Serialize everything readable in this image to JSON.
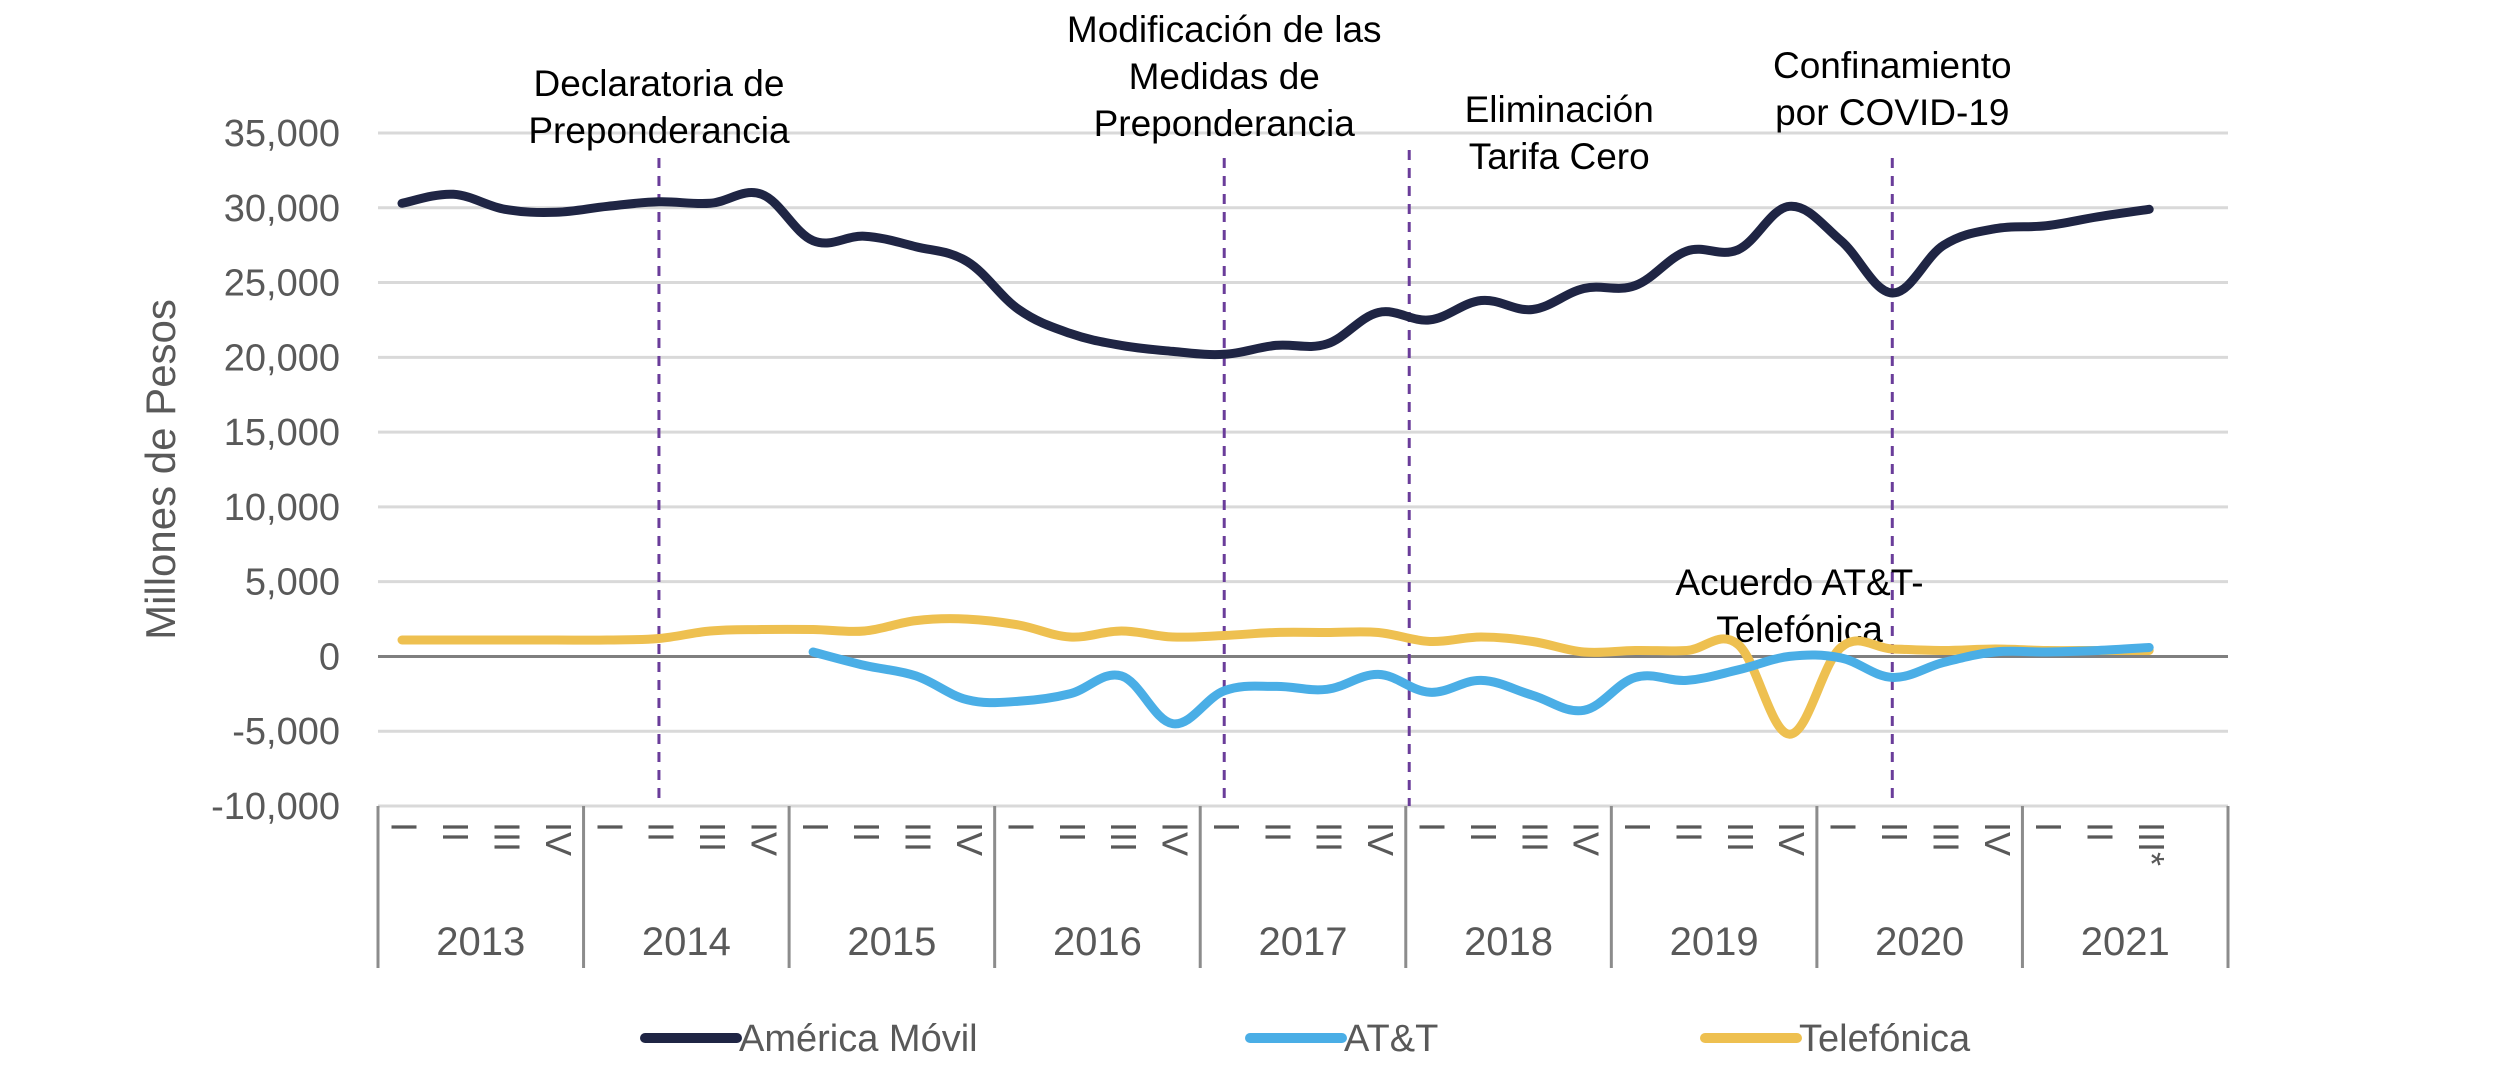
{
  "chart_data": {
    "type": "line",
    "ylabel": "Millones de Pesos",
    "ylim": [
      -10000,
      35000
    ],
    "yticks": [
      -10000,
      -5000,
      0,
      5000,
      10000,
      15000,
      20000,
      25000,
      30000,
      35000
    ],
    "ytick_labels": [
      "-10,000",
      "-5,000",
      "0",
      "5,000",
      "10,000",
      "15,000",
      "20,000",
      "25,000",
      "30,000",
      "35,000"
    ],
    "grid": true,
    "legend_position": "bottom",
    "years": [
      "2013",
      "2014",
      "2015",
      "2016",
      "2017",
      "2018",
      "2019",
      "2020",
      "2021"
    ],
    "quarter_labels": [
      [
        "I",
        "II",
        "III",
        "IV"
      ],
      [
        "I",
        "II",
        "III",
        "IV"
      ],
      [
        "I",
        "II",
        "III",
        "IV"
      ],
      [
        "I",
        "II",
        "III",
        "IV"
      ],
      [
        "I",
        "II",
        "III",
        "IV"
      ],
      [
        "I",
        "II",
        "III",
        "IV"
      ],
      [
        "I",
        "II",
        "III",
        "IV"
      ],
      [
        "I",
        "II",
        "III",
        "IV"
      ],
      [
        "I",
        "II",
        "III*"
      ]
    ],
    "series": [
      {
        "name": "América Móvil",
        "color": "#1f2544",
        "start_index": 0,
        "values": [
          30300,
          30900,
          29900,
          29700,
          30100,
          30400,
          30300,
          30900,
          27800,
          28100,
          27400,
          26400,
          23200,
          21600,
          20800,
          20400,
          20200,
          20800,
          20900,
          23000,
          22500,
          23800,
          23200,
          24600,
          24800,
          27100,
          27200,
          30100,
          27800,
          24300,
          27500,
          28600,
          28800,
          29400,
          29900
        ]
      },
      {
        "name": "AT&T",
        "color": "#4aaee6",
        "start_index": 8,
        "values": [
          300,
          -600,
          -1300,
          -2900,
          -3000,
          -2500,
          -1300,
          -4500,
          -2300,
          -2000,
          -2200,
          -1200,
          -2400,
          -1600,
          -2600,
          -3600,
          -1400,
          -1600,
          -900,
          0,
          -100,
          -1400,
          -400,
          300,
          300,
          400,
          600
        ]
      },
      {
        "name": "Telefónica",
        "color": "#eec050",
        "start_index": 0,
        "values": [
          1100,
          1100,
          1100,
          1100,
          1100,
          1200,
          1700,
          1800,
          1800,
          1700,
          2400,
          2500,
          2100,
          1300,
          1700,
          1300,
          1400,
          1600,
          1600,
          1600,
          1000,
          1300,
          1000,
          300,
          400,
          400,
          800,
          -5200,
          600,
          500,
          400,
          500,
          400,
          400,
          400
        ]
      }
    ],
    "annotations": [
      {
        "index": 5.0,
        "lines": [
          "Declaratoria de",
          "Preponderancia"
        ]
      },
      {
        "index": 16.0,
        "lines": [
          "Modificación de las",
          "Medidas de",
          "Preponderancia"
        ]
      },
      {
        "index": 19.6,
        "lines": [
          "Eliminación",
          "Tarifa Cero"
        ]
      },
      {
        "index": 29.0,
        "lines": [
          "Confinamiento",
          "por COVID-19"
        ]
      }
    ],
    "free_annotation": {
      "index": 27.0,
      "lines": [
        "Acuerdo AT&T-",
        "Telefónica"
      ]
    },
    "colors": {
      "annotation_line": "#6a3d9a",
      "grid": "#d9d9d9",
      "zero_axis": "#7f7f7f",
      "tick_text": "#595959",
      "annotation_text": "#000000"
    }
  }
}
